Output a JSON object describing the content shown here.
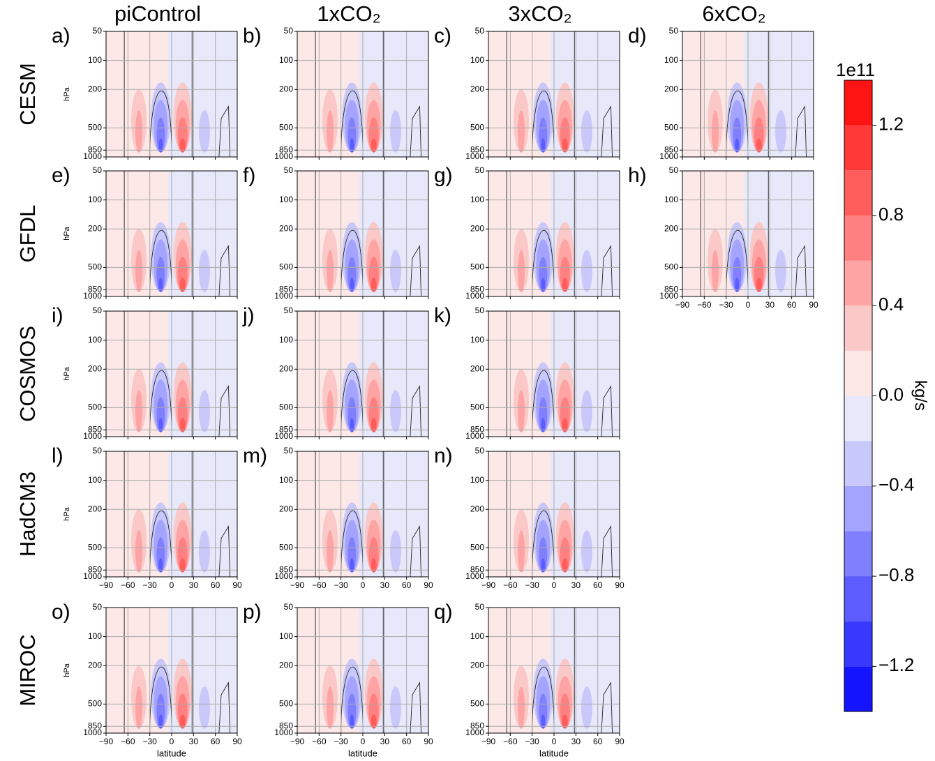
{
  "chart_data": {
    "type": "contour",
    "columns": [
      "piControl",
      "1xCO₂",
      "3xCO₂",
      "6xCO₂"
    ],
    "rows": [
      {
        "name": "CESM",
        "panels": [
          {
            "label": "a)",
            "xticklabels": false
          },
          {
            "label": "b)",
            "xticklabels": false
          },
          {
            "label": "c)",
            "xticklabels": false
          },
          {
            "label": "d)",
            "xticklabels": false
          }
        ]
      },
      {
        "name": "GFDL",
        "panels": [
          {
            "label": "e)",
            "xticklabels": false
          },
          {
            "label": "f)",
            "xticklabels": false
          },
          {
            "label": "g)",
            "xticklabels": false
          },
          {
            "label": "h)",
            "xticklabels": true
          }
        ]
      },
      {
        "name": "COSMOS",
        "panels": [
          {
            "label": "i)",
            "xticklabels": false
          },
          {
            "label": "j)",
            "xticklabels": false
          },
          {
            "label": "k)",
            "xticklabels": false
          }
        ]
      },
      {
        "name": "HadCM3",
        "panels": [
          {
            "label": "l)",
            "xticklabels": true
          },
          {
            "label": "m)",
            "xticklabels": true
          },
          {
            "label": "n)",
            "xticklabels": true
          }
        ]
      },
      {
        "name": "MIROC",
        "panels": [
          {
            "label": "o)",
            "xticklabels": true
          },
          {
            "label": "p)",
            "xticklabels": true
          },
          {
            "label": "q)",
            "xticklabels": true
          }
        ]
      }
    ],
    "xlabel": "latitude",
    "ylabel": "hPa",
    "xlim": [
      -90,
      90
    ],
    "xticks": [
      {
        "value": -90,
        "label": "−90"
      },
      {
        "value": -60,
        "label": "−60"
      },
      {
        "value": -30,
        "label": "−30"
      },
      0,
      30,
      60,
      90
    ],
    "ylim": [
      1000,
      50
    ],
    "yscale": "log",
    "yticks": [
      50,
      100,
      200,
      500,
      850,
      1000
    ],
    "grid": true,
    "colorbar": {
      "label": "kg/s",
      "offset_text": "1e11",
      "lim": [
        -1.4,
        1.4
      ],
      "levels": [
        -1.4,
        -1.2,
        -1.0,
        -0.8,
        -0.6,
        -0.4,
        -0.2,
        0.0,
        0.2,
        0.4,
        0.6,
        0.8,
        1.0,
        1.2,
        1.4
      ],
      "colors": [
        "#1414ff",
        "#3838ff",
        "#5c5cff",
        "#8080ff",
        "#a4a4ff",
        "#c8c8fb",
        "#e8e8fb",
        "#fde8e8",
        "#fbc8c8",
        "#ffa4a4",
        "#ff8080",
        "#ff5c5c",
        "#ff3838",
        "#ff1414"
      ],
      "ticks": [
        {
          "value": 1.2,
          "label": "1.2"
        },
        {
          "value": 0.8,
          "label": "0.8"
        },
        {
          "value": 0.4,
          "label": "0.4"
        },
        {
          "value": 0.0,
          "label": "0.0"
        },
        {
          "value": -0.4,
          "label": "−0.4"
        },
        {
          "value": -0.8,
          "label": "−0.8"
        },
        {
          "value": -1.2,
          "label": "−1.2"
        }
      ]
    }
  }
}
